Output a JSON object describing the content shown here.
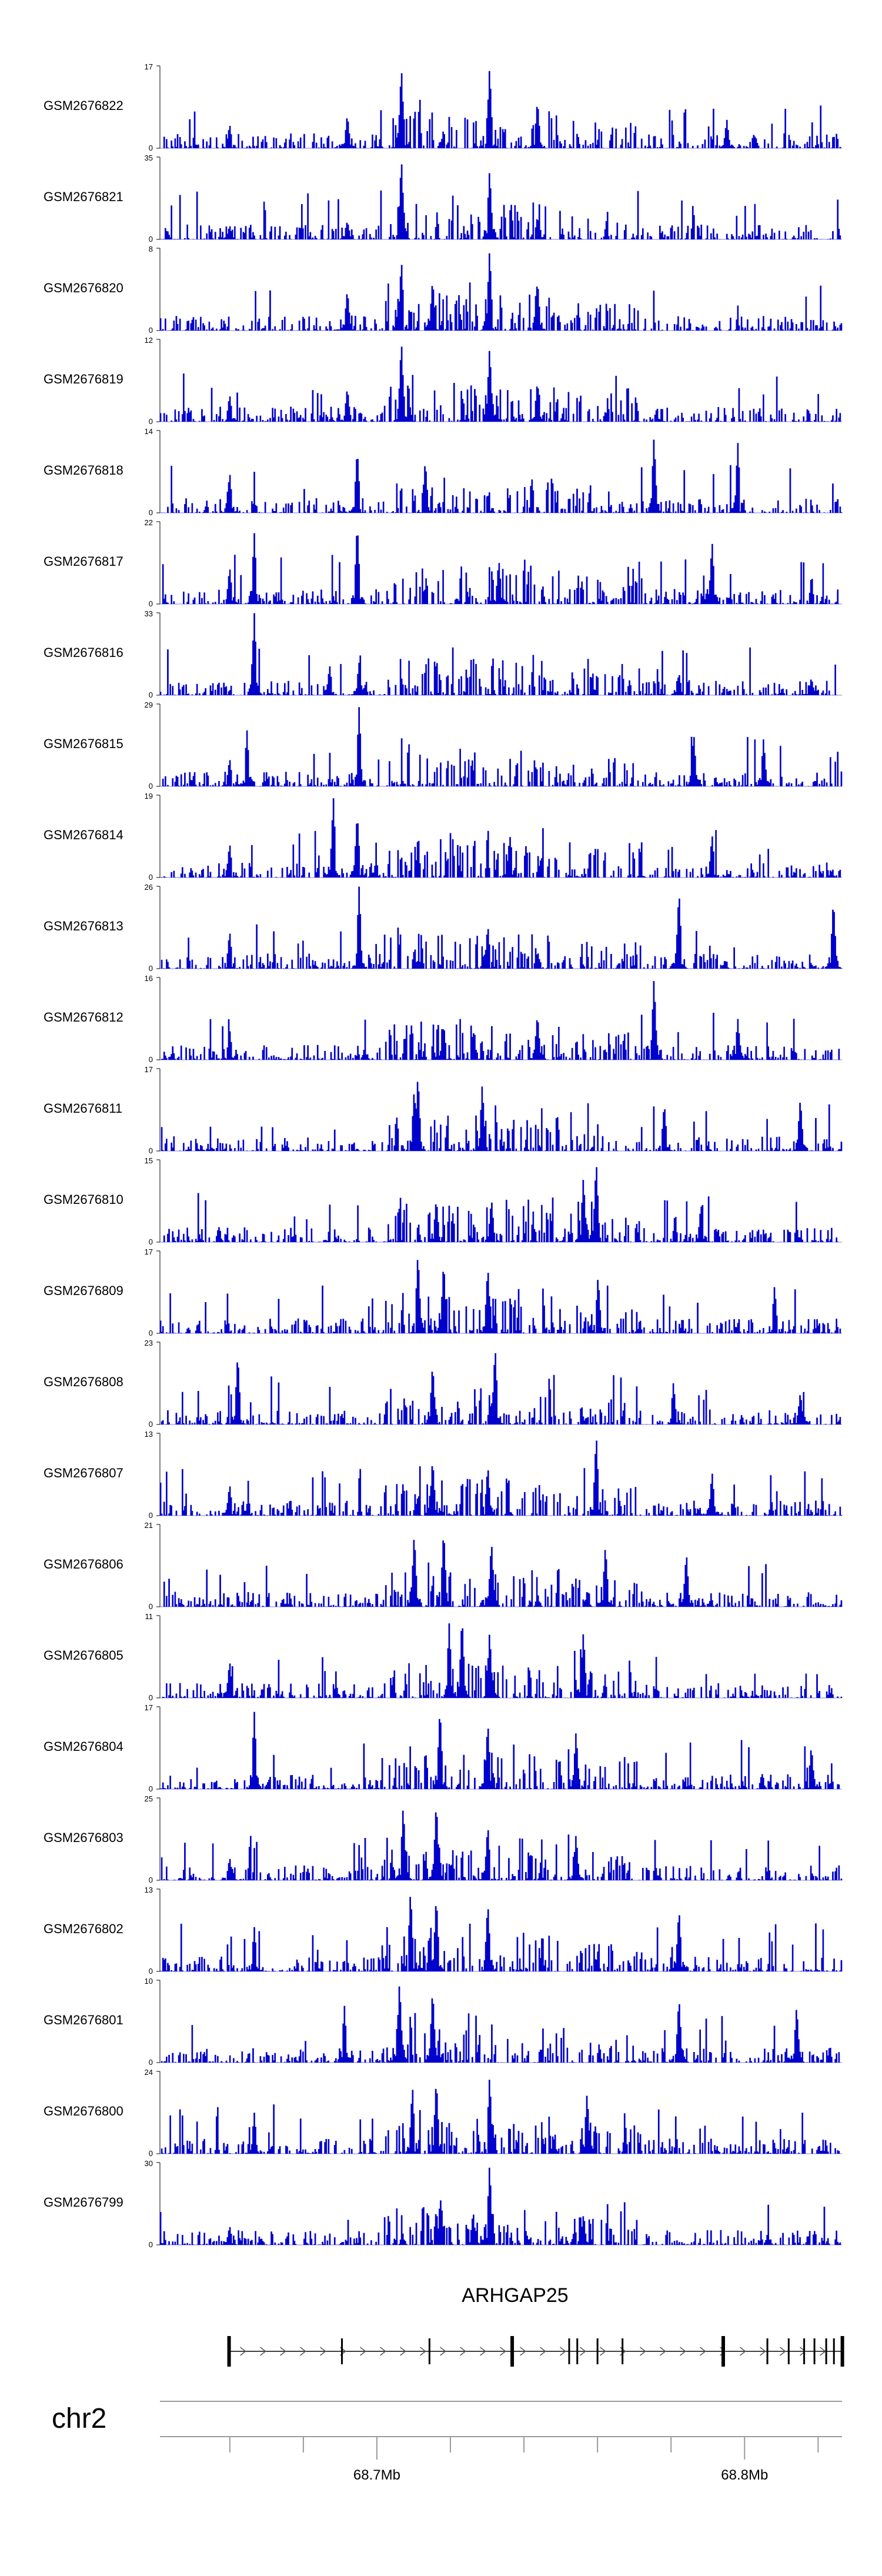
{
  "chart_data": {
    "type": "area",
    "chromosome": "chr2",
    "gene": {
      "name": "ARHGAP25",
      "strand": "+",
      "start_mb": 68.6598,
      "end_mb": 68.8267,
      "exons_mb": [
        68.6598,
        68.6905,
        68.7143,
        68.7368,
        68.7523,
        68.7545,
        68.76,
        68.7668,
        68.7942,
        68.8062,
        68.812,
        68.8162,
        68.819,
        68.8222,
        68.8243,
        68.8266
      ]
    },
    "x_axis": {
      "unit": "Mb",
      "range_mb": [
        68.641,
        68.8265
      ],
      "ticks_mb": [
        68.66,
        68.68,
        68.7,
        68.72,
        68.74,
        68.76,
        68.78,
        68.8,
        68.82
      ],
      "labeled_ticks": [
        {
          "position_mb": 68.7,
          "label": "68.7Mb"
        },
        {
          "position_mb": 68.8,
          "label": "68.8Mb"
        }
      ]
    },
    "y_axis": {
      "min": 0
    },
    "series": [
      {
        "name": "GSM2676822",
        "ymax": 17,
        "peaks_mb": [
          [
            68.7065,
            17
          ],
          [
            68.7305,
            17
          ],
          [
            68.7435,
            10
          ],
          [
            68.6918,
            7
          ],
          [
            68.6598,
            5
          ],
          [
            68.795,
            6
          ]
        ]
      },
      {
        "name": "GSM2676821",
        "ymax": 35,
        "peaks_mb": [
          [
            68.7065,
            35
          ],
          [
            68.7305,
            30
          ],
          [
            68.6918,
            8
          ],
          [
            68.7435,
            10
          ],
          [
            68.6598,
            6
          ]
        ]
      },
      {
        "name": "GSM2676820",
        "ymax": 8,
        "peaks_mb": [
          [
            68.7065,
            7
          ],
          [
            68.7305,
            8
          ],
          [
            68.715,
            5
          ],
          [
            68.7435,
            5
          ],
          [
            68.6918,
            4
          ]
        ]
      },
      {
        "name": "GSM2676819",
        "ymax": 12,
        "peaks_mb": [
          [
            68.7065,
            12
          ],
          [
            68.7305,
            11
          ],
          [
            68.6918,
            5
          ],
          [
            68.7435,
            6
          ],
          [
            68.6598,
            4
          ]
        ]
      },
      {
        "name": "GSM2676818",
        "ymax": 14,
        "peaks_mb": [
          [
            68.6945,
            11
          ],
          [
            68.7752,
            13
          ],
          [
            68.798,
            12
          ],
          [
            68.713,
            9
          ],
          [
            68.6598,
            7
          ]
        ]
      },
      {
        "name": "GSM2676817",
        "ymax": 22,
        "peaks_mb": [
          [
            68.6945,
            22
          ],
          [
            68.6665,
            19
          ],
          [
            68.791,
            17
          ],
          [
            68.733,
            12
          ],
          [
            68.6598,
            10
          ]
        ]
      },
      {
        "name": "GSM2676816",
        "ymax": 33,
        "peaks_mb": [
          [
            68.6665,
            33
          ],
          [
            68.695,
            13
          ],
          [
            68.687,
            12
          ],
          [
            68.782,
            9
          ],
          [
            68.818,
            7
          ]
        ]
      },
      {
        "name": "GSM2676815",
        "ymax": 29,
        "peaks_mb": [
          [
            68.695,
            28
          ],
          [
            68.6645,
            20
          ],
          [
            68.786,
            19
          ],
          [
            68.805,
            17
          ],
          [
            68.6598,
            10
          ]
        ]
      },
      {
        "name": "GSM2676814",
        "ymax": 19,
        "peaks_mb": [
          [
            68.688,
            19
          ],
          [
            68.6945,
            15
          ],
          [
            68.736,
            10
          ],
          [
            68.791,
            10
          ],
          [
            68.6598,
            8
          ]
        ]
      },
      {
        "name": "GSM2676813",
        "ymax": 26,
        "peaks_mb": [
          [
            68.695,
            26
          ],
          [
            68.782,
            25
          ],
          [
            68.824,
            22
          ],
          [
            68.73,
            14
          ],
          [
            68.6598,
            12
          ]
        ]
      },
      {
        "name": "GSM2676812",
        "ymax": 16,
        "peaks_mb": [
          [
            68.7752,
            16
          ],
          [
            68.7435,
            9
          ],
          [
            68.718,
            7
          ],
          [
            68.798,
            8
          ],
          [
            68.6598,
            6
          ]
        ]
      },
      {
        "name": "GSM2676811",
        "ymax": 17,
        "peaks_mb": [
          [
            68.711,
            16
          ],
          [
            68.7285,
            14
          ],
          [
            68.71,
            13
          ],
          [
            68.778,
            10
          ],
          [
            68.815,
            11
          ]
        ]
      },
      {
        "name": "GSM2676810",
        "ymax": 15,
        "peaks_mb": [
          [
            68.7595,
            15
          ],
          [
            68.756,
            12
          ],
          [
            68.731,
            8
          ],
          [
            68.716,
            8
          ],
          [
            68.788,
            7
          ]
        ]
      },
      {
        "name": "GSM2676809",
        "ymax": 17,
        "peaks_mb": [
          [
            68.711,
            17
          ],
          [
            68.718,
            15
          ],
          [
            68.73,
            14
          ],
          [
            68.76,
            12
          ],
          [
            68.808,
            10
          ]
        ]
      },
      {
        "name": "GSM2676808",
        "ymax": 23,
        "peaks_mb": [
          [
            68.732,
            22
          ],
          [
            68.662,
            20
          ],
          [
            68.715,
            17
          ],
          [
            68.7805,
            12
          ],
          [
            68.815,
            9
          ]
        ]
      },
      {
        "name": "GSM2676807",
        "ymax": 13,
        "peaks_mb": [
          [
            68.7595,
            13
          ],
          [
            68.715,
            9
          ],
          [
            68.73,
            8
          ],
          [
            68.791,
            7
          ],
          [
            68.6598,
            5
          ]
        ]
      },
      {
        "name": "GSM2676806",
        "ymax": 21,
        "peaks_mb": [
          [
            68.718,
            20
          ],
          [
            68.71,
            19
          ],
          [
            68.731,
            17
          ],
          [
            68.762,
            16
          ],
          [
            68.784,
            14
          ]
        ]
      },
      {
        "name": "GSM2676805",
        "ymax": 11,
        "peaks_mb": [
          [
            68.723,
            11
          ],
          [
            68.7195,
            10
          ],
          [
            68.7305,
            9
          ],
          [
            68.756,
            9
          ],
          [
            68.6598,
            5
          ]
        ]
      },
      {
        "name": "GSM2676804",
        "ymax": 17,
        "peaks_mb": [
          [
            68.717,
            17
          ],
          [
            68.6665,
            16
          ],
          [
            68.73,
            14
          ],
          [
            68.754,
            12
          ],
          [
            68.818,
            9
          ]
        ]
      },
      {
        "name": "GSM2676803",
        "ymax": 25,
        "peaks_mb": [
          [
            68.716,
            24
          ],
          [
            68.707,
            23
          ],
          [
            68.73,
            17
          ],
          [
            68.754,
            14
          ],
          [
            68.6598,
            7
          ]
        ]
      },
      {
        "name": "GSM2676802",
        "ymax": 13,
        "peaks_mb": [
          [
            68.709,
            13
          ],
          [
            68.716,
            12
          ],
          [
            68.73,
            11
          ],
          [
            68.782,
            10
          ],
          [
            68.6665,
            7
          ]
        ]
      },
      {
        "name": "GSM2676801",
        "ymax": 10,
        "peaks_mb": [
          [
            68.706,
            10
          ],
          [
            68.715,
            9
          ],
          [
            68.782,
            8
          ],
          [
            68.691,
            7
          ],
          [
            68.814,
            7
          ]
        ]
      },
      {
        "name": "GSM2676800",
        "ymax": 24,
        "peaks_mb": [
          [
            68.7305,
            23
          ],
          [
            68.716,
            22
          ],
          [
            68.7095,
            20
          ],
          [
            68.757,
            18
          ],
          [
            68.6665,
            12
          ]
        ]
      },
      {
        "name": "GSM2676799",
        "ymax": 30,
        "peaks_mb": [
          [
            68.7305,
            30
          ],
          [
            68.716,
            13
          ],
          [
            68.726,
            12
          ],
          [
            68.756,
            11
          ],
          [
            68.6598,
            7
          ]
        ]
      }
    ]
  },
  "colors": {
    "signal": "#0000cc",
    "axis": "#000000",
    "gene": "#000000",
    "genome_axis": "#9a9a9a",
    "text": "#000000"
  }
}
